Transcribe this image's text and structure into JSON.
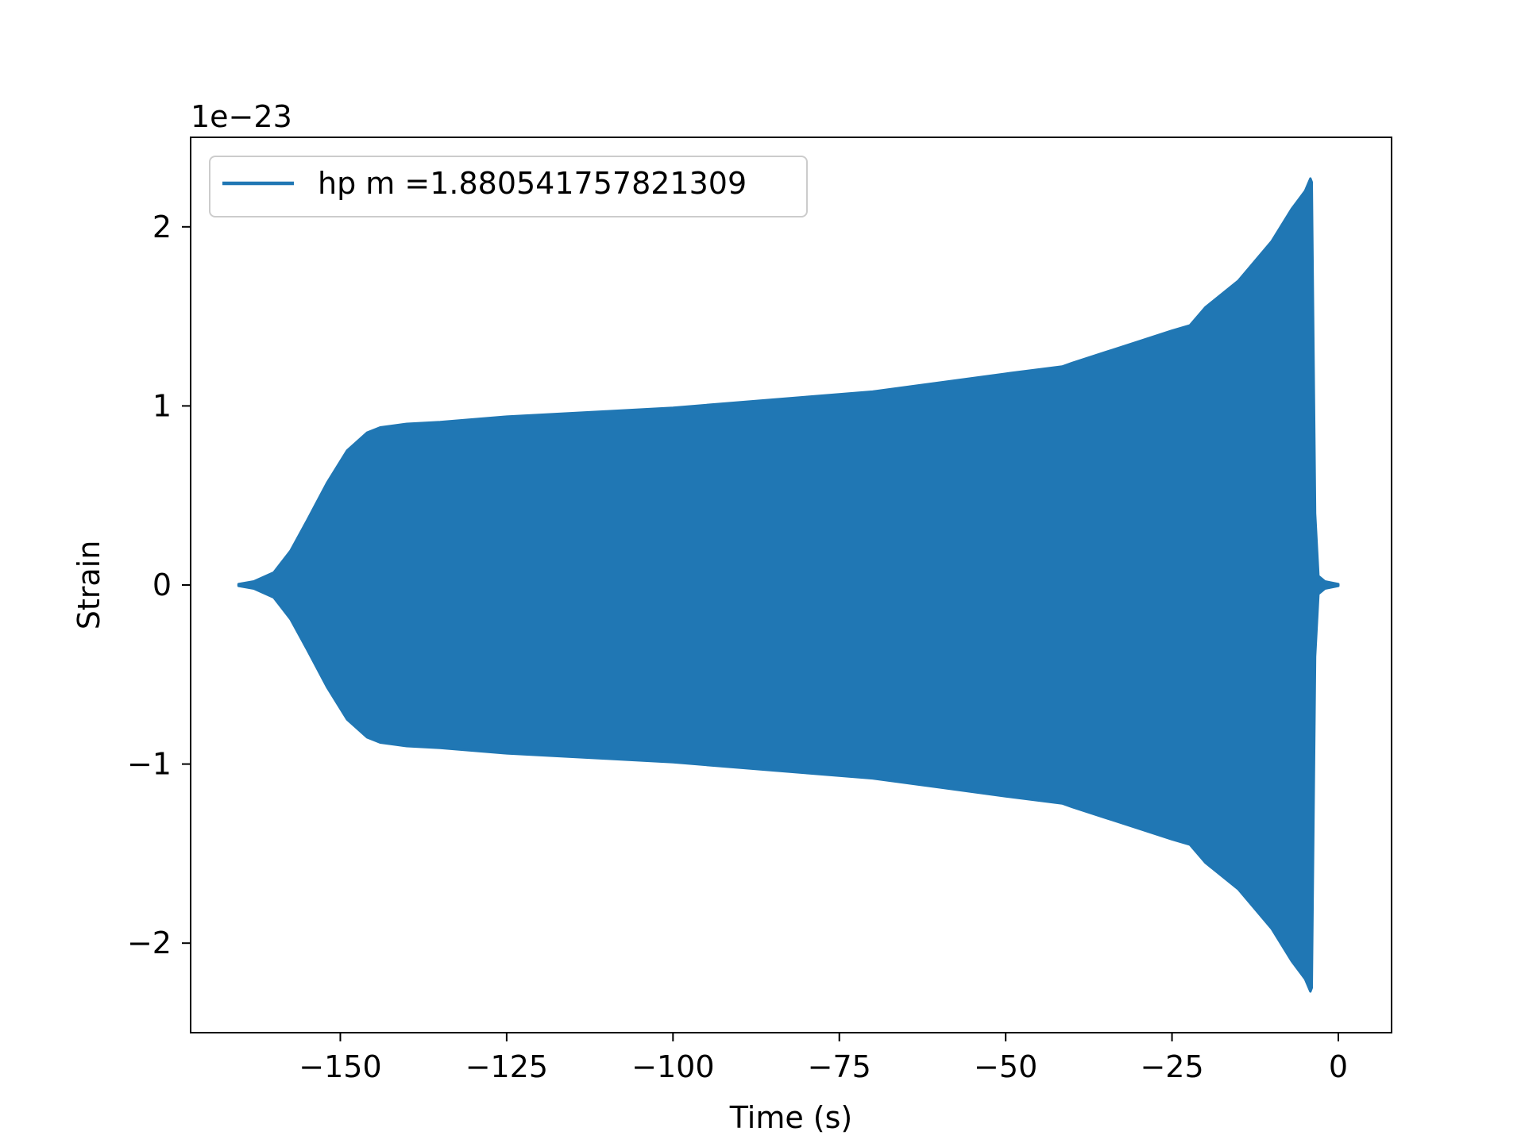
{
  "chart_data": {
    "type": "line",
    "title": "",
    "xlabel": "Time (s)",
    "ylabel": "Strain",
    "y_scale_label": "1e−23",
    "xlim": [
      -172.5,
      8
    ],
    "ylim": [
      -2.5,
      2.5
    ],
    "grid": false,
    "legend_position": "upper left",
    "x_ticks": [
      -150,
      -125,
      -100,
      -75,
      -50,
      -25,
      0
    ],
    "x_tick_labels": [
      "−150",
      "−125",
      "−100",
      "−75",
      "−50",
      "−25",
      "0"
    ],
    "y_ticks": [
      -2,
      -1,
      0,
      1,
      2
    ],
    "y_tick_labels": [
      "−2",
      "−1",
      "0",
      "1",
      "2"
    ],
    "series": [
      {
        "name": "hp m =1.880541757821309",
        "color": "#2077b4",
        "envelope": {
          "t": [
            -165.3,
            -163,
            -160,
            -157.5,
            -155,
            -152,
            -149,
            -146,
            -144,
            -142,
            -140,
            -135,
            -125,
            -110,
            -100,
            -90,
            -80,
            -70,
            -66,
            -60,
            -50,
            -41.5,
            -40,
            -35,
            -30,
            -25,
            -22.3,
            -20,
            -15,
            -10,
            -7,
            -5,
            -4.2,
            -4.0,
            -3.8,
            -3.5,
            -3.0,
            -2.0,
            0
          ],
          "amplitude": [
            0.005,
            0.02,
            0.07,
            0.19,
            0.36,
            0.57,
            0.75,
            0.85,
            0.88,
            0.89,
            0.9,
            0.91,
            0.94,
            0.97,
            0.99,
            1.02,
            1.05,
            1.08,
            1.1,
            1.13,
            1.18,
            1.22,
            1.24,
            1.3,
            1.36,
            1.42,
            1.45,
            1.55,
            1.7,
            1.92,
            2.1,
            2.2,
            2.27,
            2.25,
            1.5,
            0.4,
            0.05,
            0.02,
            0.005
          ]
        }
      }
    ]
  }
}
